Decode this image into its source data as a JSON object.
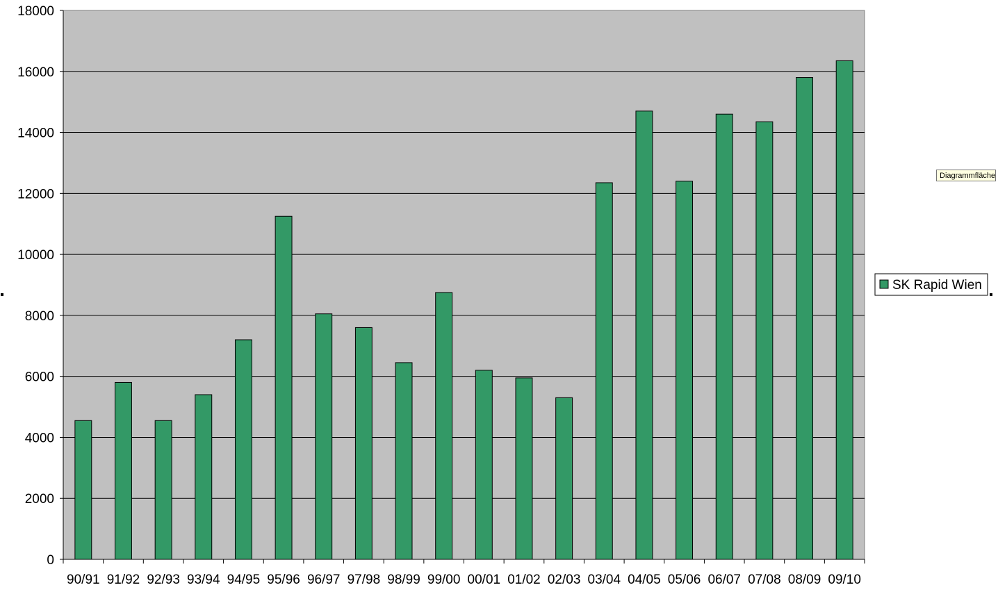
{
  "chart_data": {
    "type": "bar",
    "categories": [
      "90/91",
      "91/92",
      "92/93",
      "93/94",
      "94/95",
      "95/96",
      "96/97",
      "97/98",
      "98/99",
      "99/00",
      "00/01",
      "01/02",
      "02/03",
      "03/04",
      "04/05",
      "05/06",
      "06/07",
      "07/08",
      "08/09",
      "09/10"
    ],
    "series": [
      {
        "name": "SK Rapid Wien",
        "color": "#339966",
        "values": [
          4550,
          5800,
          4550,
          5400,
          7200,
          11250,
          8050,
          7600,
          6450,
          8750,
          6200,
          5950,
          5300,
          12350,
          14700,
          12400,
          14600,
          14350,
          15800,
          16350
        ]
      }
    ],
    "y_ticks": [
      "0",
      "2000",
      "4000",
      "6000",
      "8000",
      "10000",
      "12000",
      "14000",
      "16000",
      "18000"
    ],
    "ylim": [
      0,
      18000
    ],
    "grid": true,
    "legend": "right",
    "plot_background": "#c0c0c0"
  },
  "tooltip": {
    "text": "Diagrammfläche"
  }
}
